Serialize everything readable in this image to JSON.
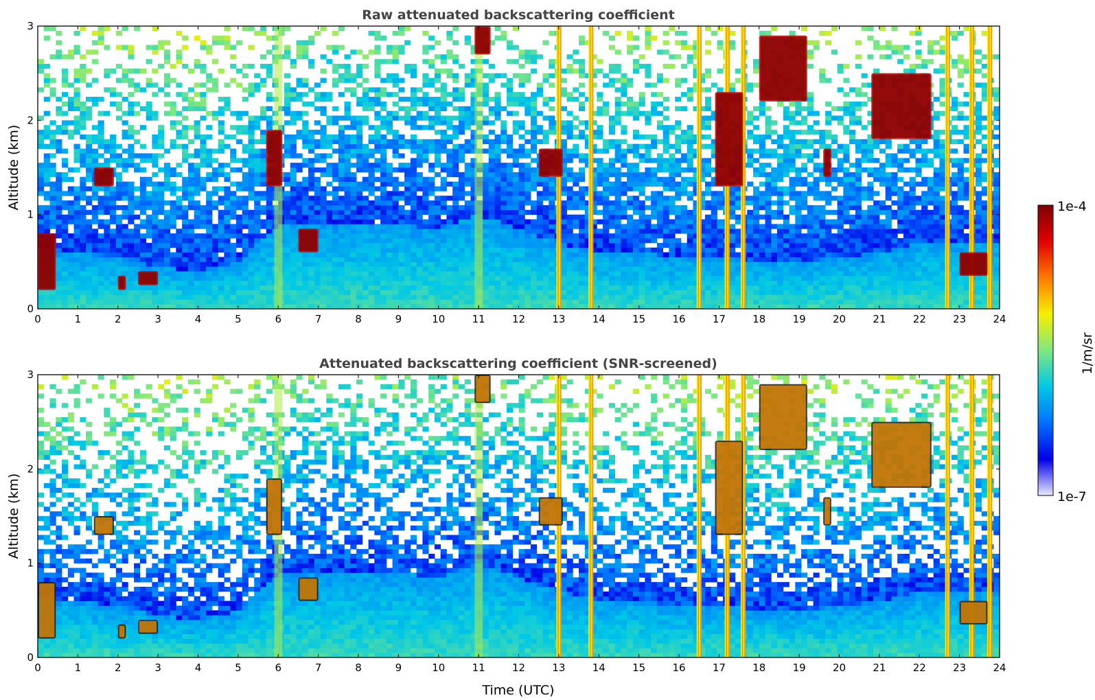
{
  "chart_data": [
    {
      "type": "heatmap",
      "title": "Raw attenuated backscattering coefficient",
      "xlabel": "",
      "ylabel": "Altitude (km)",
      "xlim": [
        0,
        24
      ],
      "ylim": [
        0,
        3
      ],
      "x_ticks": [
        0,
        1,
        2,
        3,
        4,
        5,
        6,
        7,
        8,
        9,
        10,
        11,
        12,
        13,
        14,
        15,
        16,
        17,
        18,
        19,
        20,
        21,
        22,
        23,
        24
      ],
      "y_ticks": [
        0,
        1,
        2,
        3
      ],
      "screened": false,
      "boundary_layer_top_km": [
        0.65,
        0.6,
        0.55,
        0.45,
        0.4,
        0.5,
        0.9,
        0.9,
        0.9,
        0.9,
        0.85,
        1.0,
        0.85,
        0.7,
        0.6,
        0.6,
        0.55,
        0.55,
        0.5,
        0.5,
        0.55,
        0.6,
        0.7,
        0.7,
        0.7
      ],
      "cloud_features": [
        {
          "t_start": 0.0,
          "t_end": 0.45,
          "z_bottom_km": 0.2,
          "z_top_km": 0.8
        },
        {
          "t_start": 1.4,
          "t_end": 1.9,
          "z_bottom_km": 1.3,
          "z_top_km": 1.5
        },
        {
          "t_start": 2.0,
          "t_end": 2.2,
          "z_bottom_km": 0.2,
          "z_top_km": 0.35
        },
        {
          "t_start": 2.5,
          "t_end": 3.0,
          "z_bottom_km": 0.25,
          "z_top_km": 0.4
        },
        {
          "t_start": 5.7,
          "t_end": 6.1,
          "z_bottom_km": 1.3,
          "z_top_km": 1.9
        },
        {
          "t_start": 6.5,
          "t_end": 7.0,
          "z_bottom_km": 0.6,
          "z_top_km": 0.85
        },
        {
          "t_start": 10.9,
          "t_end": 11.3,
          "z_bottom_km": 2.7,
          "z_top_km": 3.0
        },
        {
          "t_start": 12.5,
          "t_end": 13.1,
          "z_bottom_km": 1.4,
          "z_top_km": 1.7
        },
        {
          "t_start": 16.9,
          "t_end": 17.6,
          "z_bottom_km": 1.3,
          "z_top_km": 2.3
        },
        {
          "t_start": 18.0,
          "t_end": 19.2,
          "z_bottom_km": 2.2,
          "z_top_km": 2.9
        },
        {
          "t_start": 19.6,
          "t_end": 19.8,
          "z_bottom_km": 1.4,
          "z_top_km": 1.7
        },
        {
          "t_start": 20.8,
          "t_end": 22.3,
          "z_bottom_km": 1.8,
          "z_top_km": 2.5
        },
        {
          "t_start": 23.0,
          "t_end": 23.7,
          "z_bottom_km": 0.35,
          "z_top_km": 0.6
        }
      ],
      "vertical_streaks": [
        {
          "t": 6.0,
          "intensity": "medium"
        },
        {
          "t": 11.0,
          "intensity": "medium"
        },
        {
          "t": 13.0,
          "intensity": "strong"
        },
        {
          "t": 13.8,
          "intensity": "strong"
        },
        {
          "t": 16.5,
          "intensity": "strong"
        },
        {
          "t": 17.2,
          "intensity": "strong"
        },
        {
          "t": 17.6,
          "intensity": "strong"
        },
        {
          "t": 22.7,
          "intensity": "strong"
        },
        {
          "t": 23.3,
          "intensity": "strong"
        },
        {
          "t": 23.75,
          "intensity": "strong"
        }
      ]
    },
    {
      "type": "heatmap",
      "title": "Attenuated backscattering coefficient (SNR-screened)",
      "xlabel": "Time (UTC)",
      "ylabel": "Altitude (km)",
      "xlim": [
        0,
        24
      ],
      "ylim": [
        0,
        3
      ],
      "x_ticks": [
        0,
        1,
        2,
        3,
        4,
        5,
        6,
        7,
        8,
        9,
        10,
        11,
        12,
        13,
        14,
        15,
        16,
        17,
        18,
        19,
        20,
        21,
        22,
        23,
        24
      ],
      "y_ticks": [
        0,
        1,
        2,
        3
      ],
      "screened": true
    }
  ],
  "colorbar": {
    "label": "1/m/sr",
    "max_label": "1e-4",
    "min_label": "1e-7",
    "scale": "log",
    "colormap": [
      "#e8e8ff",
      "#0000e6",
      "#0070ff",
      "#00c8e6",
      "#7fe880",
      "#f5f000",
      "#ff7a00",
      "#e00000",
      "#7f0000"
    ]
  }
}
